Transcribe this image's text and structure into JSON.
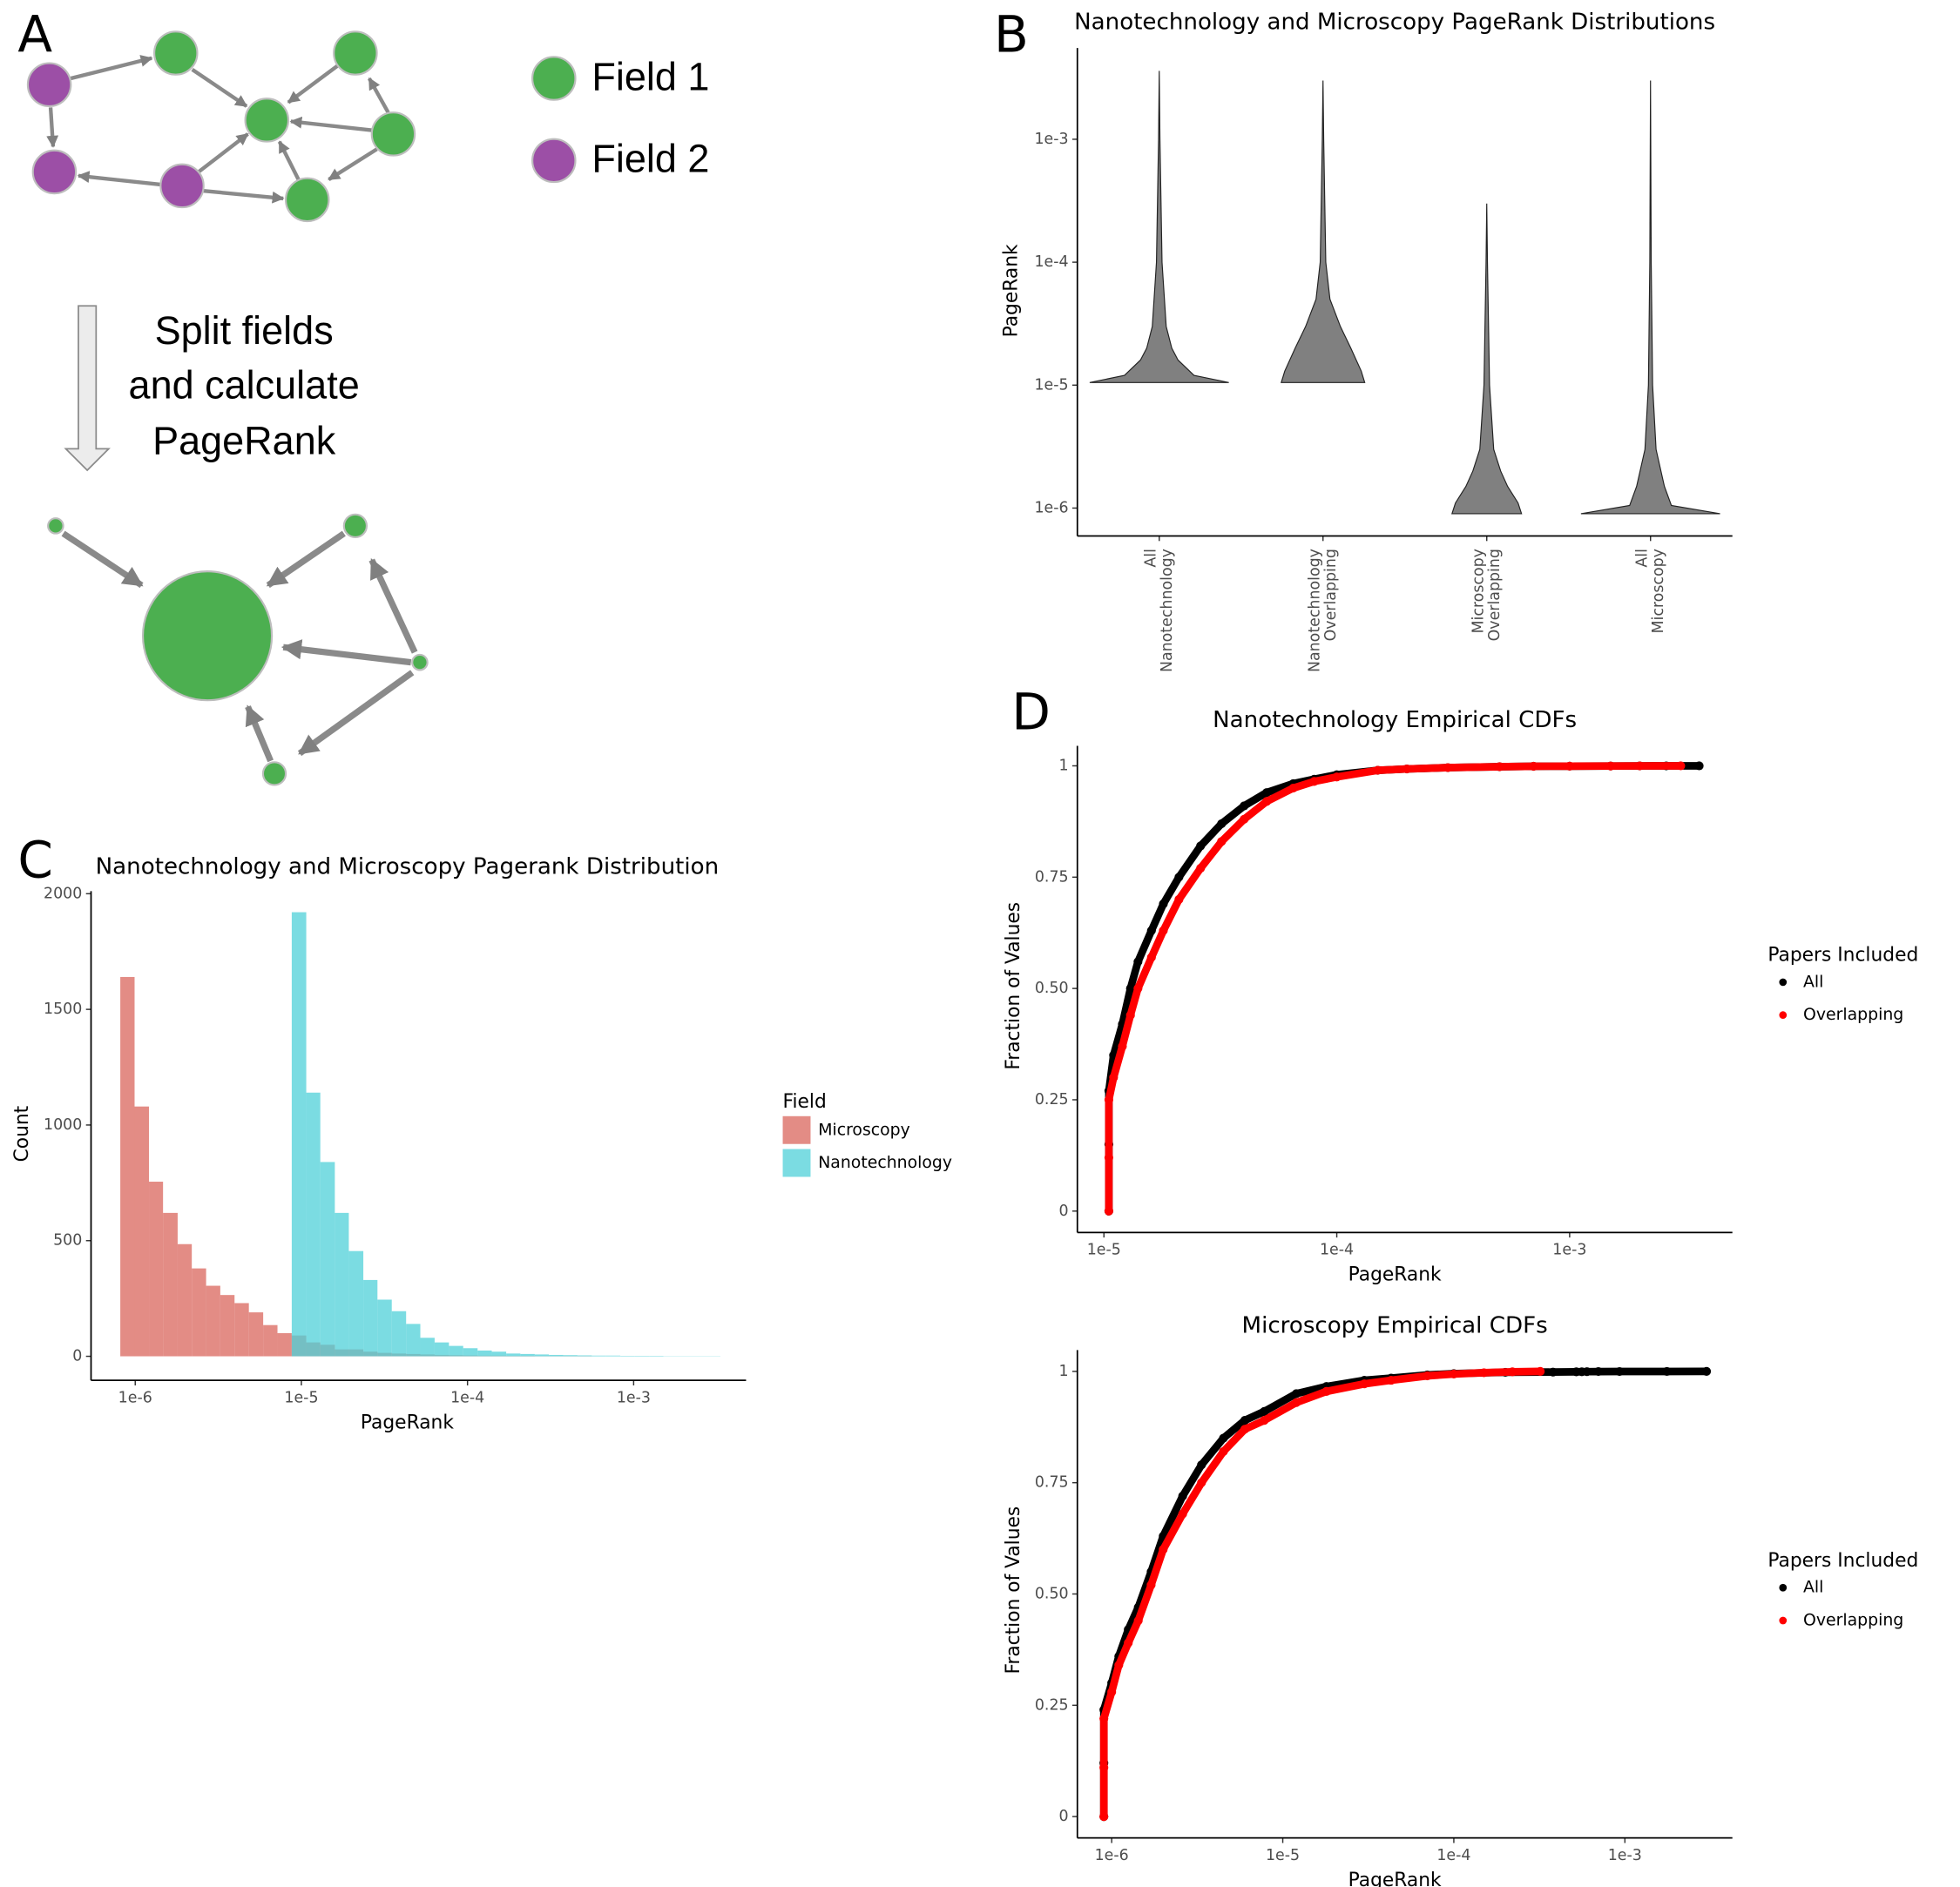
{
  "diagram": {
    "panel_label": "A",
    "legend": [
      "Field 1",
      "Field 2"
    ],
    "arrow_text": [
      "Split fields",
      "and calculate",
      "PageRank"
    ]
  },
  "chart_data": [
    {
      "type": "violin",
      "panel_label": "B",
      "title": "Nanotechnology and Microscopy PageRank Distributions",
      "ylabel": "PageRank",
      "categories": [
        [
          "All",
          "Nanotechnology"
        ],
        [
          "Nanotechnology",
          "Overlapping"
        ],
        [
          "Microscopy",
          "Overlapping"
        ],
        [
          "All",
          "Microscopy"
        ]
      ],
      "color": "#808080",
      "log_y": true,
      "ylim": [
        5.93e-07,
        0.00552
      ],
      "yticks": [
        {
          "value": 1e-06,
          "label": "1e-6"
        },
        {
          "value": 1e-05,
          "label": "1e-5"
        },
        {
          "value": 0.0001,
          "label": "1e-4"
        },
        {
          "value": 0.001,
          "label": "1e-3"
        }
      ],
      "violins": [
        {
          "y": [
            1.05e-05,
            1.2e-05,
            1.6e-05,
            2e-05,
            3e-05,
            0.0001,
            0.001,
            0.0036
          ],
          "density": [
            1,
            0.5,
            0.27,
            0.18,
            0.1,
            0.04,
            0.01,
            0
          ]
        },
        {
          "y": [
            1.05e-05,
            1.3e-05,
            2e-05,
            3e-05,
            5e-05,
            0.0001,
            0.001,
            0.003
          ],
          "density": [
            0.6,
            0.55,
            0.4,
            0.25,
            0.1,
            0.04,
            0.01,
            0
          ]
        },
        {
          "y": [
            9e-07,
            1.1e-06,
            1.5e-06,
            2e-06,
            3e-06,
            1e-05,
            0.0001,
            0.0003
          ],
          "density": [
            0.5,
            0.45,
            0.3,
            0.2,
            0.1,
            0.04,
            0.01,
            0
          ]
        },
        {
          "y": [
            9e-07,
            1.05e-06,
            1.5e-06,
            2e-06,
            3e-06,
            1e-05,
            0.0001,
            0.003
          ],
          "density": [
            1,
            0.3,
            0.2,
            0.15,
            0.08,
            0.03,
            0.01,
            0
          ]
        }
      ]
    },
    {
      "type": "histogram",
      "panel_label": "C",
      "title": "Nanotechnology and Microscopy Pagerank Distribution",
      "xlabel": "PageRank",
      "ylabel": "Count",
      "log_x": true,
      "xlim": [
        5.42e-07,
        0.00475
      ],
      "ylim": [
        -104,
        2011
      ],
      "xticks": [
        {
          "value": 1e-06,
          "label": "1e-6"
        },
        {
          "value": 1e-05,
          "label": "1e-5"
        },
        {
          "value": 0.0001,
          "label": "1e-4"
        },
        {
          "value": 0.001,
          "label": "1e-3"
        }
      ],
      "yticks": [
        0,
        500,
        1000,
        1500,
        2000
      ],
      "legend": "right",
      "legend_title": "Field",
      "bins": [
        8.13e-07,
        9.91e-07,
        1.21e-06,
        1.47e-06,
        1.8e-06,
        2.19e-06,
        2.67e-06,
        3.25e-06,
        3.96e-06,
        4.83e-06,
        5.89e-06,
        7.18e-06,
        8.75e-06,
        1.07e-05,
        1.3e-05,
        1.59e-05,
        1.93e-05,
        2.36e-05,
        2.87e-05,
        3.5e-05,
        4.27e-05,
        5.2e-05,
        6.34e-05,
        7.73e-05,
        9.42e-05,
        0.000115,
        0.00014,
        0.000171,
        0.000208,
        0.000254,
        0.000309,
        0.000377,
        0.000459,
        0.00056,
        0.000682,
        0.000832,
        0.00101,
        0.00124,
        0.00151,
        0.00184,
        0.00224,
        0.00273,
        0.00333
      ],
      "series": [
        {
          "name": "Microscopy",
          "color": "#d9655c",
          "values": [
            1640,
            1080,
            755,
            620,
            485,
            380,
            305,
            265,
            230,
            190,
            135,
            100,
            90,
            60,
            50,
            30,
            30,
            20,
            15,
            12,
            10,
            8,
            6,
            5,
            4,
            3,
            3,
            2,
            2,
            1,
            1,
            1,
            1,
            0,
            0,
            0,
            0,
            0,
            0,
            0,
            0,
            0
          ]
        },
        {
          "name": "Nanotechnology",
          "color": "#4fd0d8",
          "values": [
            0,
            0,
            0,
            0,
            0,
            0,
            0,
            0,
            0,
            0,
            0,
            0,
            1920,
            1140,
            840,
            620,
            455,
            330,
            245,
            195,
            140,
            80,
            60,
            45,
            35,
            25,
            20,
            12,
            10,
            8,
            6,
            5,
            4,
            3,
            3,
            2,
            2,
            2,
            1,
            1,
            1,
            1
          ]
        }
      ]
    },
    {
      "type": "scatter",
      "panel_label": "D",
      "title": "Nanotechnology Empirical CDFs",
      "xlabel": "PageRank",
      "ylabel": "Fraction of Values",
      "log_x": true,
      "xlim": [
        7.69e-06,
        0.005
      ],
      "ylim": [
        -0.048,
        1.045
      ],
      "xticks": [
        {
          "value": 1e-05,
          "label": "1e-5"
        },
        {
          "value": 0.0001,
          "label": "1e-4"
        },
        {
          "value": 0.001,
          "label": "1e-3"
        }
      ],
      "yticks": [
        0,
        0.25,
        {
          "value": 0.5,
          "label": "0.50"
        },
        0.75,
        1
      ],
      "legend": "right",
      "legend_title": "Papers Included",
      "series": [
        {
          "name": "All",
          "color": "#000000",
          "x": [
            1.05e-05,
            1.05e-05,
            1.05e-05,
            1.1e-05,
            1.2e-05,
            1.3e-05,
            1.4e-05,
            1.6e-05,
            1.8e-05,
            2.1e-05,
            2.6e-05,
            3.2e-05,
            4e-05,
            5e-05,
            6.5e-05,
            8e-05,
            0.0001,
            0.00015,
            0.0002,
            0.0003,
            0.0005,
            0.0007,
            0.001,
            0.0015,
            0.002,
            0.0026,
            0.0036
          ],
          "values": [
            0,
            0.15,
            0.27,
            0.35,
            0.42,
            0.5,
            0.56,
            0.63,
            0.69,
            0.75,
            0.82,
            0.87,
            0.91,
            0.94,
            0.96,
            0.97,
            0.98,
            0.99,
            0.993,
            0.996,
            0.998,
            0.999,
            0.9993,
            0.9996,
            0.9998,
            0.9999,
            1
          ]
        },
        {
          "name": "Overlapping",
          "color": "#ff0000",
          "x": [
            1.05e-05,
            1.05e-05,
            1.05e-05,
            1.1e-05,
            1.2e-05,
            1.3e-05,
            1.4e-05,
            1.6e-05,
            1.8e-05,
            2.1e-05,
            2.6e-05,
            3.2e-05,
            4e-05,
            5e-05,
            6.5e-05,
            8e-05,
            0.0001,
            0.00015,
            0.0002,
            0.0003,
            0.0005,
            0.0007,
            0.001,
            0.0015,
            0.002,
            0.003
          ],
          "values": [
            0,
            0.12,
            0.25,
            0.3,
            0.37,
            0.44,
            0.5,
            0.57,
            0.63,
            0.7,
            0.77,
            0.83,
            0.88,
            0.92,
            0.95,
            0.965,
            0.975,
            0.99,
            0.993,
            0.996,
            0.998,
            0.999,
            0.9993,
            0.9996,
            0.9998,
            1
          ]
        }
      ]
    },
    {
      "type": "scatter",
      "title": "Microscopy Empirical CDFs",
      "xlabel": "PageRank",
      "ylabel": "Fraction of Values",
      "log_x": true,
      "xlim": [
        6.3e-07,
        0.00425
      ],
      "ylim": [
        -0.048,
        1.048
      ],
      "xticks": [
        {
          "value": 1e-06,
          "label": "1e-6"
        },
        {
          "value": 1e-05,
          "label": "1e-5"
        },
        {
          "value": 0.0001,
          "label": "1e-4"
        },
        {
          "value": 0.001,
          "label": "1e-3"
        }
      ],
      "yticks": [
        0,
        0.25,
        {
          "value": 0.5,
          "label": "0.50"
        },
        0.75,
        1
      ],
      "legend": "right",
      "legend_title": "Papers Included",
      "series": [
        {
          "name": "All",
          "color": "#000000",
          "x": [
            9e-07,
            9e-07,
            9e-07,
            1e-06,
            1.1e-06,
            1.25e-06,
            1.43e-06,
            1.7e-06,
            2e-06,
            2.6e-06,
            3.35e-06,
            4.5e-06,
            6e-06,
            7.8e-06,
            1.2e-05,
            1.8e-05,
            3e-05,
            4.3e-05,
            7e-05,
            0.0001,
            0.0002,
            0.00038,
            0.00052,
            0.00056,
            0.0006,
            0.0007,
            0.00093,
            0.00176,
            0.003
          ],
          "values": [
            0,
            0.12,
            0.24,
            0.3,
            0.36,
            0.42,
            0.47,
            0.55,
            0.63,
            0.72,
            0.79,
            0.85,
            0.89,
            0.91,
            0.95,
            0.966,
            0.98,
            0.985,
            0.992,
            0.995,
            0.998,
            0.9985,
            0.999,
            0.9992,
            0.9994,
            0.9996,
            0.9997,
            0.9998,
            1
          ]
        },
        {
          "name": "Overlapping",
          "color": "#ff0000",
          "x": [
            9e-07,
            9e-07,
            9e-07,
            1e-06,
            1.1e-06,
            1.25e-06,
            1.43e-06,
            1.7e-06,
            2e-06,
            2.6e-06,
            3.35e-06,
            4.5e-06,
            6e-06,
            7.8e-06,
            1.2e-05,
            1.8e-05,
            3e-05,
            4.3e-05,
            7e-05,
            0.0001,
            0.00015,
            0.00022,
            0.00032
          ],
          "values": [
            0,
            0.11,
            0.22,
            0.28,
            0.34,
            0.39,
            0.44,
            0.52,
            0.6,
            0.68,
            0.75,
            0.82,
            0.87,
            0.89,
            0.93,
            0.955,
            0.972,
            0.98,
            0.99,
            0.994,
            0.997,
            0.999,
            1
          ]
        }
      ]
    }
  ]
}
